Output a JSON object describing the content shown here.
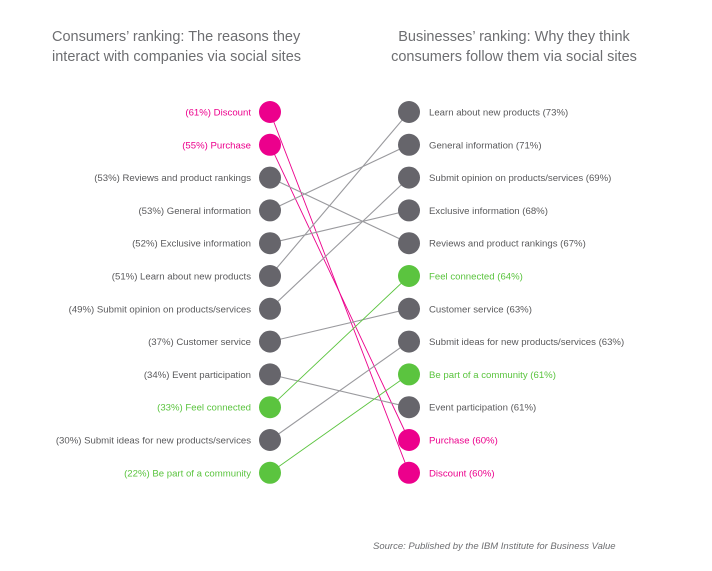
{
  "chart_data": {
    "type": "slope",
    "titles": {
      "left": [
        "Consumers’ ranking: The reasons they",
        "interact with companies via social sites"
      ],
      "right": [
        "Businesses’ ranking: Why they think",
        "consumers follow them via social sites"
      ]
    },
    "source": "Source: Published by the IBM Institute for Business Value",
    "colors": {
      "gray": "#66656b",
      "pink": "#ec008c",
      "green": "#5bc43f",
      "text": "#5a5a5c",
      "line": "#9a9a9e"
    },
    "left": [
      {
        "label": "(61%) Discount",
        "color": "pink"
      },
      {
        "label": "(55%) Purchase",
        "color": "pink"
      },
      {
        "label": "(53%) Reviews and product rankings",
        "color": "gray"
      },
      {
        "label": "(53%) General information",
        "color": "gray"
      },
      {
        "label": "(52%) Exclusive information",
        "color": "gray"
      },
      {
        "label": "(51%) Learn about new products",
        "color": "gray"
      },
      {
        "label": "(49%) Submit opinion on products/services",
        "color": "gray"
      },
      {
        "label": "(37%) Customer service",
        "color": "gray"
      },
      {
        "label": "(34%) Event participation",
        "color": "gray"
      },
      {
        "label": "(33%) Feel connected",
        "color": "green"
      },
      {
        "label": "(30%) Submit ideas for new products/services",
        "color": "gray"
      },
      {
        "label": "(22%) Be part of a community",
        "color": "green"
      }
    ],
    "right": [
      {
        "label": "Learn about new products (73%)",
        "color": "gray"
      },
      {
        "label": "General information (71%)",
        "color": "gray"
      },
      {
        "label": "Submit opinion on products/services (69%)",
        "color": "gray"
      },
      {
        "label": "Exclusive information (68%)",
        "color": "gray"
      },
      {
        "label": "Reviews and product rankings (67%)",
        "color": "gray"
      },
      {
        "label": "Feel connected (64%)",
        "color": "green"
      },
      {
        "label": "Customer service (63%)",
        "color": "gray"
      },
      {
        "label": "Submit ideas for new products/services (63%)",
        "color": "gray"
      },
      {
        "label": "Be part of a community (61%)",
        "color": "green"
      },
      {
        "label": "Event participation (61%)",
        "color": "gray"
      },
      {
        "label": "Purchase (60%)",
        "color": "pink"
      },
      {
        "label": "Discount (60%)",
        "color": "pink"
      }
    ],
    "links": [
      [
        0,
        11
      ],
      [
        1,
        10
      ],
      [
        2,
        4
      ],
      [
        3,
        1
      ],
      [
        4,
        3
      ],
      [
        5,
        0
      ],
      [
        6,
        2
      ],
      [
        7,
        6
      ],
      [
        8,
        9
      ],
      [
        9,
        5
      ],
      [
        10,
        7
      ],
      [
        11,
        8
      ]
    ]
  }
}
